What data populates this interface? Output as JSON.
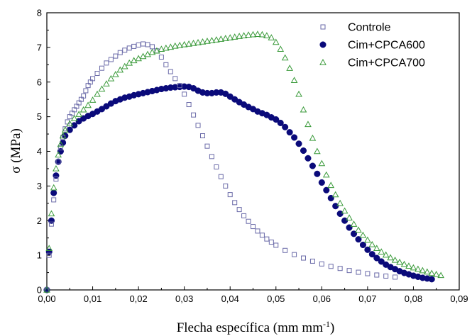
{
  "chart_data": {
    "type": "scatter",
    "title": "",
    "xlabel": "Flecha específica (mm mm",
    "xlabel_sup": "-1",
    "xlabel_end": ")",
    "ylabel": "σ (MPa)",
    "xlim": [
      0,
      0.09
    ],
    "ylim": [
      0,
      8
    ],
    "x_ticks": [
      0,
      0.01,
      0.02,
      0.03,
      0.04,
      0.05,
      0.06,
      0.07,
      0.08,
      0.09
    ],
    "x_tick_labels": [
      "0,00",
      "0,01",
      "0,02",
      "0,03",
      "0,04",
      "0,05",
      "0,06",
      "0,07",
      "0,08",
      "0,09"
    ],
    "y_ticks": [
      0,
      1,
      2,
      3,
      4,
      5,
      6,
      7,
      8
    ],
    "y_tick_labels": [
      "0",
      "1",
      "2",
      "3",
      "4",
      "5",
      "6",
      "7",
      "8"
    ],
    "grid": false,
    "legend_position": "top-right",
    "series": [
      {
        "name": "Controle",
        "marker": "open-square",
        "color": "#6a6aa8",
        "points": [
          [
            0,
            0
          ],
          [
            0.0005,
            1.0
          ],
          [
            0.001,
            1.9
          ],
          [
            0.0015,
            2.6
          ],
          [
            0.002,
            3.2
          ],
          [
            0.0025,
            3.7
          ],
          [
            0.003,
            4.1
          ],
          [
            0.0035,
            4.4
          ],
          [
            0.004,
            4.65
          ],
          [
            0.0045,
            4.85
          ],
          [
            0.005,
            5.0
          ],
          [
            0.0055,
            5.1
          ],
          [
            0.006,
            5.2
          ],
          [
            0.0065,
            5.3
          ],
          [
            0.007,
            5.4
          ],
          [
            0.0075,
            5.5
          ],
          [
            0.008,
            5.6
          ],
          [
            0.0085,
            5.75
          ],
          [
            0.009,
            5.9
          ],
          [
            0.0095,
            6.0
          ],
          [
            0.01,
            6.1
          ],
          [
            0.011,
            6.25
          ],
          [
            0.012,
            6.4
          ],
          [
            0.013,
            6.55
          ],
          [
            0.014,
            6.65
          ],
          [
            0.015,
            6.75
          ],
          [
            0.016,
            6.85
          ],
          [
            0.017,
            6.92
          ],
          [
            0.018,
            6.98
          ],
          [
            0.019,
            7.03
          ],
          [
            0.02,
            7.07
          ],
          [
            0.021,
            7.1
          ],
          [
            0.022,
            7.08
          ],
          [
            0.023,
            7.02
          ],
          [
            0.024,
            6.9
          ],
          [
            0.025,
            6.72
          ],
          [
            0.026,
            6.5
          ],
          [
            0.027,
            6.3
          ],
          [
            0.028,
            6.1
          ],
          [
            0.029,
            5.9
          ],
          [
            0.03,
            5.65
          ],
          [
            0.031,
            5.35
          ],
          [
            0.032,
            5.05
          ],
          [
            0.033,
            4.75
          ],
          [
            0.034,
            4.45
          ],
          [
            0.035,
            4.15
          ],
          [
            0.036,
            3.85
          ],
          [
            0.037,
            3.55
          ],
          [
            0.038,
            3.27
          ],
          [
            0.039,
            3.0
          ],
          [
            0.04,
            2.75
          ],
          [
            0.041,
            2.52
          ],
          [
            0.042,
            2.32
          ],
          [
            0.043,
            2.14
          ],
          [
            0.044,
            1.98
          ],
          [
            0.045,
            1.83
          ],
          [
            0.046,
            1.7
          ],
          [
            0.047,
            1.58
          ],
          [
            0.048,
            1.47
          ],
          [
            0.049,
            1.38
          ],
          [
            0.05,
            1.29
          ],
          [
            0.052,
            1.14
          ],
          [
            0.054,
            1.02
          ],
          [
            0.056,
            0.92
          ],
          [
            0.058,
            0.83
          ],
          [
            0.06,
            0.75
          ],
          [
            0.062,
            0.68
          ],
          [
            0.064,
            0.62
          ],
          [
            0.066,
            0.56
          ],
          [
            0.068,
            0.51
          ],
          [
            0.07,
            0.47
          ],
          [
            0.072,
            0.43
          ],
          [
            0.074,
            0.4
          ],
          [
            0.076,
            0.37
          ]
        ]
      },
      {
        "name": "Cim+CPCA600",
        "marker": "filled-circle",
        "color": "#0a0a7a",
        "points": [
          [
            0,
            0
          ],
          [
            0.0005,
            1.1
          ],
          [
            0.001,
            2.0
          ],
          [
            0.0015,
            2.8
          ],
          [
            0.002,
            3.3
          ],
          [
            0.0025,
            3.7
          ],
          [
            0.003,
            4.0
          ],
          [
            0.0035,
            4.25
          ],
          [
            0.004,
            4.45
          ],
          [
            0.005,
            4.62
          ],
          [
            0.006,
            4.75
          ],
          [
            0.007,
            4.87
          ],
          [
            0.008,
            4.95
          ],
          [
            0.009,
            5.02
          ],
          [
            0.01,
            5.08
          ],
          [
            0.011,
            5.15
          ],
          [
            0.012,
            5.22
          ],
          [
            0.013,
            5.3
          ],
          [
            0.014,
            5.38
          ],
          [
            0.015,
            5.45
          ],
          [
            0.016,
            5.5
          ],
          [
            0.017,
            5.55
          ],
          [
            0.018,
            5.58
          ],
          [
            0.019,
            5.62
          ],
          [
            0.02,
            5.65
          ],
          [
            0.021,
            5.68
          ],
          [
            0.022,
            5.71
          ],
          [
            0.023,
            5.74
          ],
          [
            0.024,
            5.77
          ],
          [
            0.025,
            5.8
          ],
          [
            0.026,
            5.82
          ],
          [
            0.027,
            5.84
          ],
          [
            0.028,
            5.85
          ],
          [
            0.029,
            5.86
          ],
          [
            0.03,
            5.87
          ],
          [
            0.031,
            5.86
          ],
          [
            0.032,
            5.82
          ],
          [
            0.033,
            5.75
          ],
          [
            0.034,
            5.7
          ],
          [
            0.035,
            5.68
          ],
          [
            0.036,
            5.68
          ],
          [
            0.037,
            5.7
          ],
          [
            0.038,
            5.7
          ],
          [
            0.039,
            5.66
          ],
          [
            0.04,
            5.58
          ],
          [
            0.041,
            5.5
          ],
          [
            0.042,
            5.42
          ],
          [
            0.043,
            5.35
          ],
          [
            0.044,
            5.28
          ],
          [
            0.045,
            5.22
          ],
          [
            0.046,
            5.15
          ],
          [
            0.047,
            5.1
          ],
          [
            0.048,
            5.05
          ],
          [
            0.049,
            4.98
          ],
          [
            0.05,
            4.92
          ],
          [
            0.051,
            4.82
          ],
          [
            0.052,
            4.7
          ],
          [
            0.053,
            4.55
          ],
          [
            0.054,
            4.4
          ],
          [
            0.055,
            4.22
          ],
          [
            0.056,
            4.02
          ],
          [
            0.057,
            3.8
          ],
          [
            0.058,
            3.58
          ],
          [
            0.059,
            3.35
          ],
          [
            0.06,
            3.1
          ],
          [
            0.061,
            2.88
          ],
          [
            0.062,
            2.65
          ],
          [
            0.063,
            2.42
          ],
          [
            0.064,
            2.2
          ],
          [
            0.065,
            2.0
          ],
          [
            0.066,
            1.8
          ],
          [
            0.067,
            1.62
          ],
          [
            0.068,
            1.46
          ],
          [
            0.069,
            1.3
          ],
          [
            0.07,
            1.16
          ],
          [
            0.071,
            1.03
          ],
          [
            0.072,
            0.92
          ],
          [
            0.073,
            0.82
          ],
          [
            0.074,
            0.73
          ],
          [
            0.075,
            0.66
          ],
          [
            0.076,
            0.6
          ],
          [
            0.077,
            0.54
          ],
          [
            0.078,
            0.49
          ],
          [
            0.079,
            0.45
          ],
          [
            0.08,
            0.41
          ],
          [
            0.081,
            0.38
          ],
          [
            0.082,
            0.35
          ],
          [
            0.083,
            0.33
          ],
          [
            0.084,
            0.31
          ]
        ]
      },
      {
        "name": "Cim+CPCA700",
        "marker": "open-triangle",
        "color": "#3a9a3a",
        "points": [
          [
            0,
            0
          ],
          [
            0.0005,
            1.2
          ],
          [
            0.001,
            2.2
          ],
          [
            0.0015,
            2.95
          ],
          [
            0.002,
            3.5
          ],
          [
            0.0025,
            3.9
          ],
          [
            0.003,
            4.2
          ],
          [
            0.0035,
            4.45
          ],
          [
            0.004,
            4.62
          ],
          [
            0.005,
            4.8
          ],
          [
            0.006,
            4.95
          ],
          [
            0.007,
            5.07
          ],
          [
            0.008,
            5.2
          ],
          [
            0.009,
            5.33
          ],
          [
            0.01,
            5.48
          ],
          [
            0.011,
            5.65
          ],
          [
            0.012,
            5.8
          ],
          [
            0.013,
            5.95
          ],
          [
            0.014,
            6.1
          ],
          [
            0.015,
            6.22
          ],
          [
            0.016,
            6.35
          ],
          [
            0.017,
            6.45
          ],
          [
            0.018,
            6.55
          ],
          [
            0.019,
            6.62
          ],
          [
            0.02,
            6.68
          ],
          [
            0.021,
            6.74
          ],
          [
            0.022,
            6.8
          ],
          [
            0.023,
            6.86
          ],
          [
            0.024,
            6.9
          ],
          [
            0.025,
            6.95
          ],
          [
            0.026,
            6.98
          ],
          [
            0.027,
            7.01
          ],
          [
            0.028,
            7.04
          ],
          [
            0.029,
            7.06
          ],
          [
            0.03,
            7.08
          ],
          [
            0.031,
            7.1
          ],
          [
            0.032,
            7.12
          ],
          [
            0.033,
            7.14
          ],
          [
            0.034,
            7.16
          ],
          [
            0.035,
            7.18
          ],
          [
            0.036,
            7.2
          ],
          [
            0.037,
            7.22
          ],
          [
            0.038,
            7.24
          ],
          [
            0.039,
            7.26
          ],
          [
            0.04,
            7.28
          ],
          [
            0.041,
            7.3
          ],
          [
            0.042,
            7.32
          ],
          [
            0.043,
            7.34
          ],
          [
            0.044,
            7.36
          ],
          [
            0.045,
            7.37
          ],
          [
            0.046,
            7.38
          ],
          [
            0.047,
            7.37
          ],
          [
            0.048,
            7.34
          ],
          [
            0.049,
            7.28
          ],
          [
            0.05,
            7.15
          ],
          [
            0.051,
            6.95
          ],
          [
            0.052,
            6.7
          ],
          [
            0.053,
            6.4
          ],
          [
            0.054,
            6.05
          ],
          [
            0.055,
            5.65
          ],
          [
            0.056,
            5.2
          ],
          [
            0.057,
            4.78
          ],
          [
            0.058,
            4.38
          ],
          [
            0.059,
            4.0
          ],
          [
            0.06,
            3.65
          ],
          [
            0.061,
            3.32
          ],
          [
            0.062,
            3.02
          ],
          [
            0.063,
            2.75
          ],
          [
            0.064,
            2.5
          ],
          [
            0.065,
            2.28
          ],
          [
            0.066,
            2.08
          ],
          [
            0.067,
            1.9
          ],
          [
            0.068,
            1.73
          ],
          [
            0.069,
            1.58
          ],
          [
            0.07,
            1.44
          ],
          [
            0.071,
            1.31
          ],
          [
            0.072,
            1.2
          ],
          [
            0.073,
            1.1
          ],
          [
            0.074,
            1.01
          ],
          [
            0.075,
            0.93
          ],
          [
            0.076,
            0.86
          ],
          [
            0.077,
            0.8
          ],
          [
            0.078,
            0.74
          ],
          [
            0.079,
            0.69
          ],
          [
            0.08,
            0.64
          ],
          [
            0.081,
            0.6
          ],
          [
            0.082,
            0.56
          ],
          [
            0.083,
            0.52
          ],
          [
            0.084,
            0.48
          ],
          [
            0.085,
            0.45
          ],
          [
            0.086,
            0.42
          ]
        ]
      }
    ]
  }
}
